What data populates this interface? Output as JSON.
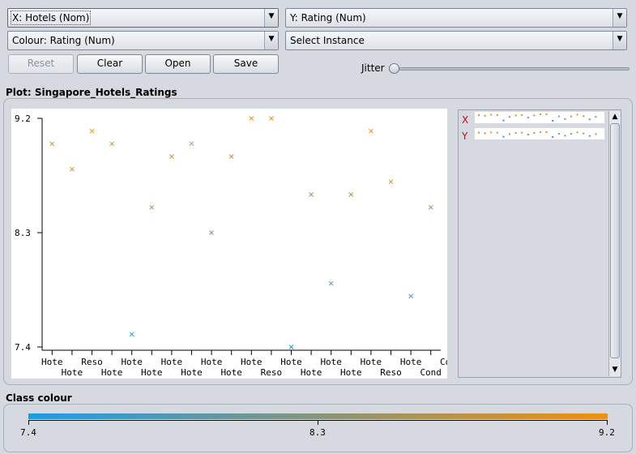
{
  "controls": {
    "x_axis": "X: Hotels (Nom)",
    "y_axis": "Y: Rating (Num)",
    "colour": "Colour: Rating (Num)",
    "instance": "Select Instance",
    "reset_label": "Reset",
    "clear_label": "Clear",
    "open_label": "Open",
    "save_label": "Save",
    "jitter_label": "Jitter",
    "jitter_value": 0
  },
  "plot": {
    "title": "Plot: Singapore_Hotels_Ratings"
  },
  "colours": {
    "low": "#1e9be8",
    "high": "#f0900e",
    "arrow_red": "#d0021b"
  },
  "chart_data": {
    "type": "scatter",
    "ylim": [
      7.4,
      9.2
    ],
    "y_ticks": [
      "9.2",
      "8.3",
      "7.4"
    ],
    "x_top_labels": [
      "Hote",
      "Reso",
      "Hote",
      "Hote",
      "Hote",
      "Hote",
      "Hote",
      "Hote",
      "Hote",
      "Hote",
      "Cond"
    ],
    "x_bottom_labels": [
      "Hote",
      "Hote",
      "Hote",
      "Hote",
      "Hote",
      "Reso",
      "Hote",
      "Hote",
      "Reso",
      "Cond"
    ],
    "points": [
      {
        "x": 0,
        "y": 9.0
      },
      {
        "x": 1,
        "y": 8.8
      },
      {
        "x": 2,
        "y": 9.1
      },
      {
        "x": 3,
        "y": 9.0
      },
      {
        "x": 4,
        "y": 7.5
      },
      {
        "x": 5,
        "y": 8.5
      },
      {
        "x": 6,
        "y": 8.9
      },
      {
        "x": 7,
        "y": 9.0
      },
      {
        "x": 8,
        "y": 8.3
      },
      {
        "x": 9,
        "y": 8.9
      },
      {
        "x": 10,
        "y": 9.2
      },
      {
        "x": 11,
        "y": 9.2
      },
      {
        "x": 12,
        "y": 7.4
      },
      {
        "x": 13,
        "y": 8.6
      },
      {
        "x": 14,
        "y": 7.9
      },
      {
        "x": 15,
        "y": 8.6
      },
      {
        "x": 16,
        "y": 9.1
      },
      {
        "x": 17,
        "y": 8.7
      },
      {
        "x": 18,
        "y": 7.8
      },
      {
        "x": 19,
        "y": 8.5
      }
    ]
  },
  "side": {
    "x_label": "X",
    "y_label": "Y",
    "up_icon": "▲",
    "down_icon": "▼"
  },
  "legend": {
    "title": "Class colour",
    "min": "7.4",
    "mid": "8.3",
    "max": "9.2"
  }
}
